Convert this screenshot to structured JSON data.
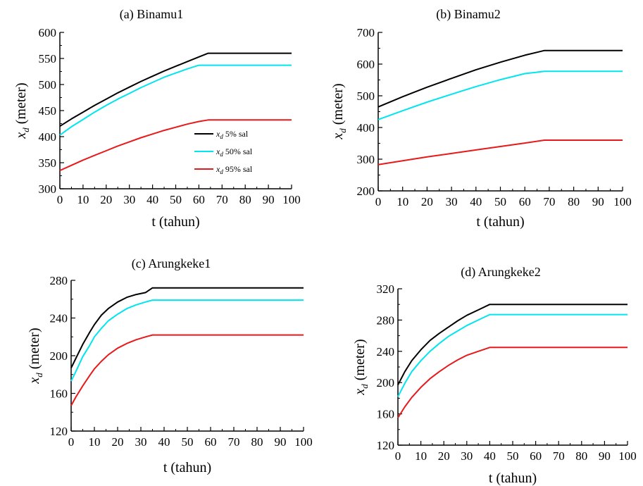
{
  "colors": {
    "p5": "#000000",
    "p50": "#00e5ee",
    "p95": "#e8191a"
  },
  "legend": [
    {
      "sym": "x",
      "sub": "d",
      "text": " 5% sal",
      "color": "#000000"
    },
    {
      "sym": "x",
      "sub": "d",
      "text": " 50% sal",
      "color": "#00e5ee"
    },
    {
      "sym": "x",
      "sub": "d",
      "text": " 95% sal",
      "color": "#e8191a"
    }
  ],
  "chart_data": [
    {
      "type": "line",
      "title": "(a) Binamu1",
      "xlabel": "t (tahun)",
      "ylabel_symbol": "x",
      "ylabel_sub": "d",
      "ylabel_text": " (meter)",
      "xlim": [
        0,
        100
      ],
      "ylim": [
        300,
        600
      ],
      "xticks": [
        0,
        10,
        20,
        30,
        40,
        50,
        60,
        70,
        80,
        90,
        100
      ],
      "yticks": [
        300,
        350,
        400,
        450,
        500,
        550,
        600
      ],
      "series": [
        {
          "key": "p5",
          "x": [
            0,
            5,
            10,
            15,
            20,
            25,
            30,
            35,
            40,
            45,
            50,
            55,
            60,
            64,
            100
          ],
          "y": [
            420,
            434,
            447,
            460,
            472,
            484,
            495,
            506,
            516,
            526,
            535,
            544,
            553,
            560,
            560
          ]
        },
        {
          "key": "p50",
          "x": [
            0,
            5,
            10,
            15,
            20,
            25,
            30,
            35,
            40,
            45,
            50,
            55,
            60,
            64,
            100
          ],
          "y": [
            403,
            419,
            433,
            447,
            460,
            472,
            483,
            494,
            504,
            514,
            522,
            530,
            537,
            537,
            537
          ]
        },
        {
          "key": "p95",
          "x": [
            0,
            5,
            10,
            15,
            20,
            25,
            30,
            35,
            40,
            45,
            50,
            55,
            60,
            64,
            100
          ],
          "y": [
            335,
            345,
            355,
            364,
            373,
            382,
            390,
            398,
            405,
            412,
            418,
            424,
            429,
            432,
            432
          ]
        }
      ]
    },
    {
      "type": "line",
      "title": "(b) Binamu2",
      "xlabel": "t (tahun)",
      "ylabel_symbol": "x",
      "ylabel_sub": "d",
      "ylabel_text": " (meter)",
      "xlim": [
        0,
        100
      ],
      "ylim": [
        200,
        700
      ],
      "xticks": [
        0,
        10,
        20,
        30,
        40,
        50,
        60,
        70,
        80,
        90,
        100
      ],
      "yticks": [
        200,
        300,
        400,
        500,
        600,
        700
      ],
      "series": [
        {
          "key": "p5",
          "x": [
            0,
            10,
            20,
            30,
            40,
            50,
            60,
            68,
            100
          ],
          "y": [
            465,
            497,
            527,
            555,
            582,
            606,
            628,
            643,
            643
          ]
        },
        {
          "key": "p50",
          "x": [
            0,
            10,
            20,
            30,
            40,
            50,
            60,
            68,
            100
          ],
          "y": [
            425,
            453,
            480,
            505,
            529,
            551,
            570,
            577,
            577
          ]
        },
        {
          "key": "p95",
          "x": [
            0,
            10,
            20,
            30,
            40,
            50,
            60,
            68,
            100
          ],
          "y": [
            283,
            295,
            307,
            318,
            329,
            340,
            351,
            360,
            360
          ]
        }
      ]
    },
    {
      "type": "line",
      "title": "(c) Arungkeke1",
      "xlabel": "t (tahun)",
      "ylabel_symbol": "x",
      "ylabel_sub": "d",
      "ylabel_text": " (meter)",
      "xlim": [
        0,
        100
      ],
      "ylim": [
        120,
        280
      ],
      "xticks": [
        0,
        10,
        20,
        30,
        40,
        50,
        60,
        70,
        80,
        90,
        100
      ],
      "yticks": [
        120,
        160,
        200,
        240,
        280
      ],
      "series": [
        {
          "key": "p5",
          "x": [
            0,
            2,
            5,
            8,
            10,
            13,
            16,
            20,
            24,
            28,
            32,
            35,
            100
          ],
          "y": [
            187,
            197,
            212,
            225,
            233,
            243,
            250,
            257,
            262,
            265,
            267,
            272,
            272
          ]
        },
        {
          "key": "p50",
          "x": [
            0,
            2,
            5,
            8,
            10,
            13,
            16,
            20,
            24,
            28,
            32,
            35,
            100
          ],
          "y": [
            173,
            183,
            199,
            211,
            220,
            229,
            237,
            244,
            250,
            254,
            257,
            259,
            259
          ]
        },
        {
          "key": "p95",
          "x": [
            0,
            2,
            5,
            8,
            10,
            13,
            16,
            20,
            24,
            28,
            32,
            35,
            100
          ],
          "y": [
            147,
            156,
            168,
            179,
            186,
            194,
            201,
            208,
            213,
            217,
            220,
            222,
            222
          ]
        }
      ]
    },
    {
      "type": "line",
      "title": "(d) Arungkeke2",
      "xlabel": "t (tahun)",
      "ylabel_symbol": "x",
      "ylabel_sub": "d",
      "ylabel_text": " (meter)",
      "xlim": [
        0,
        100
      ],
      "ylim": [
        120,
        320
      ],
      "xticks": [
        0,
        10,
        20,
        30,
        40,
        50,
        60,
        70,
        80,
        90,
        100
      ],
      "yticks": [
        120,
        160,
        200,
        240,
        280,
        320
      ],
      "series": [
        {
          "key": "p5",
          "x": [
            0,
            3,
            6,
            10,
            14,
            18,
            22,
            26,
            30,
            35,
            40,
            100
          ],
          "y": [
            197,
            214,
            228,
            242,
            254,
            263,
            271,
            279,
            286,
            293,
            300,
            300
          ]
        },
        {
          "key": "p50",
          "x": [
            0,
            3,
            6,
            10,
            14,
            18,
            22,
            26,
            30,
            35,
            40,
            100
          ],
          "y": [
            182,
            199,
            214,
            228,
            240,
            250,
            259,
            266,
            273,
            280,
            287,
            287
          ]
        },
        {
          "key": "p95",
          "x": [
            0,
            3,
            6,
            10,
            14,
            18,
            22,
            26,
            30,
            35,
            40,
            100
          ],
          "y": [
            155,
            169,
            181,
            194,
            205,
            214,
            222,
            229,
            235,
            240,
            245,
            245
          ]
        }
      ]
    }
  ]
}
